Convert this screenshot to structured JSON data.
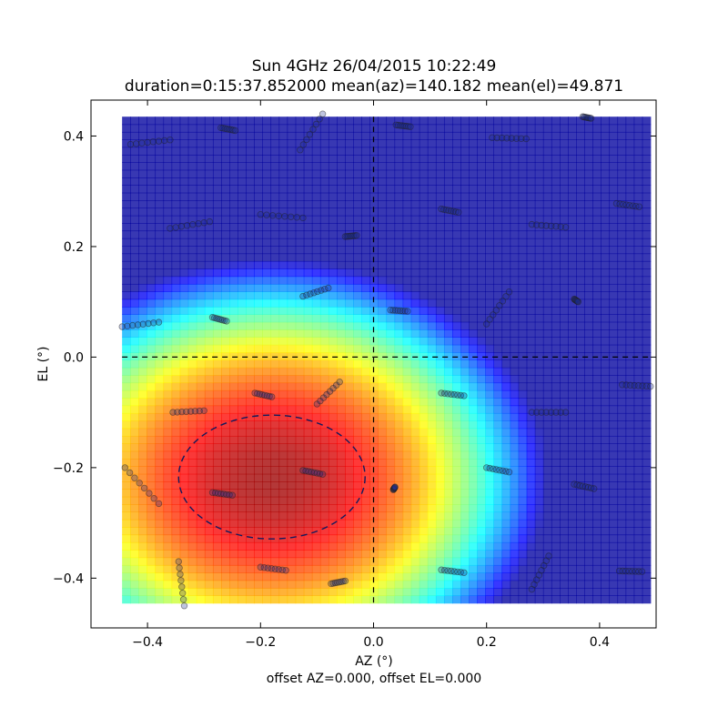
{
  "title": {
    "line1": "Sun 4GHz 26/04/2015 10:22:49",
    "line2": "duration=0:15:37.852000 mean(az)=140.182 mean(el)=49.871"
  },
  "footer": "offset AZ=0.000, offset EL=0.000",
  "chart_data": {
    "type": "heatmap",
    "xlabel": "AZ (°)",
    "ylabel": "EL (°)",
    "xlim": [
      -0.5,
      0.5
    ],
    "ylim": [
      -0.49,
      0.465
    ],
    "x_ticks": [
      -0.4,
      -0.2,
      0.0,
      0.2,
      0.4
    ],
    "y_ticks": [
      -0.4,
      -0.2,
      0.0,
      0.2,
      0.4
    ],
    "x_tick_labels": [
      "−0.4",
      "−0.2",
      "0.0",
      "0.2",
      "0.4"
    ],
    "y_tick_labels": [
      "−0.4",
      "−0.2",
      "0.0",
      "0.2",
      "0.4"
    ],
    "colormap": "jet",
    "heatmap_extent": {
      "x": [
        -0.445,
        0.49
      ],
      "y": [
        -0.445,
        0.435
      ]
    },
    "beam_peak": {
      "az": -0.18,
      "el": -0.22
    },
    "beam_ellipse": {
      "center": [
        -0.18,
        -0.217
      ],
      "semi_axis_az": 0.165,
      "semi_axis_el": 0.112
    },
    "reference_lines": {
      "az": 0.0,
      "el": 0.0
    },
    "scan_points_color": "#1a2a8c",
    "scan_segments": [
      {
        "from": [
          -0.43,
          0.385
        ],
        "to": [
          -0.36,
          0.393
        ]
      },
      {
        "from": [
          -0.27,
          0.415
        ],
        "to": [
          -0.245,
          0.41
        ]
      },
      {
        "from": [
          -0.13,
          0.375
        ],
        "to": [
          -0.09,
          0.44
        ]
      },
      {
        "from": [
          0.04,
          0.42
        ],
        "to": [
          0.065,
          0.417
        ]
      },
      {
        "from": [
          0.21,
          0.397
        ],
        "to": [
          0.27,
          0.395
        ]
      },
      {
        "from": [
          0.37,
          0.435
        ],
        "to": [
          0.385,
          0.432
        ]
      },
      {
        "from": [
          -0.36,
          0.233
        ],
        "to": [
          -0.29,
          0.245
        ]
      },
      {
        "from": [
          -0.2,
          0.258
        ],
        "to": [
          -0.125,
          0.252
        ]
      },
      {
        "from": [
          -0.05,
          0.218
        ],
        "to": [
          -0.03,
          0.22
        ]
      },
      {
        "from": [
          0.12,
          0.268
        ],
        "to": [
          0.15,
          0.262
        ]
      },
      {
        "from": [
          0.28,
          0.24
        ],
        "to": [
          0.34,
          0.235
        ]
      },
      {
        "from": [
          0.43,
          0.278
        ],
        "to": [
          0.47,
          0.272
        ]
      },
      {
        "from": [
          -0.445,
          0.055
        ],
        "to": [
          -0.38,
          0.063
        ]
      },
      {
        "from": [
          -0.285,
          0.072
        ],
        "to": [
          -0.26,
          0.065
        ]
      },
      {
        "from": [
          -0.125,
          0.11
        ],
        "to": [
          -0.08,
          0.125
        ]
      },
      {
        "from": [
          0.03,
          0.085
        ],
        "to": [
          0.06,
          0.083
        ]
      },
      {
        "from": [
          0.2,
          0.06
        ],
        "to": [
          0.24,
          0.118
        ]
      },
      {
        "from": [
          0.355,
          0.105
        ],
        "to": [
          0.362,
          0.1
        ]
      },
      {
        "from": [
          -0.355,
          -0.1
        ],
        "to": [
          -0.3,
          -0.097
        ]
      },
      {
        "from": [
          -0.21,
          -0.065
        ],
        "to": [
          -0.18,
          -0.072
        ]
      },
      {
        "from": [
          -0.1,
          -0.085
        ],
        "to": [
          -0.06,
          -0.045
        ]
      },
      {
        "from": [
          0.12,
          -0.065
        ],
        "to": [
          0.16,
          -0.07
        ]
      },
      {
        "from": [
          0.28,
          -0.1
        ],
        "to": [
          0.34,
          -0.1
        ]
      },
      {
        "from": [
          0.44,
          -0.05
        ],
        "to": [
          0.49,
          -0.053
        ]
      },
      {
        "from": [
          -0.44,
          -0.2
        ],
        "to": [
          -0.38,
          -0.265
        ]
      },
      {
        "from": [
          -0.285,
          -0.245
        ],
        "to": [
          -0.25,
          -0.25
        ]
      },
      {
        "from": [
          -0.125,
          -0.205
        ],
        "to": [
          -0.09,
          -0.212
        ]
      },
      {
        "from": [
          0.035,
          -0.24
        ],
        "to": [
          0.038,
          -0.235
        ]
      },
      {
        "from": [
          0.2,
          -0.2
        ],
        "to": [
          0.24,
          -0.208
        ]
      },
      {
        "from": [
          0.355,
          -0.23
        ],
        "to": [
          0.39,
          -0.238
        ]
      },
      {
        "from": [
          -0.345,
          -0.37
        ],
        "to": [
          -0.335,
          -0.45
        ]
      },
      {
        "from": [
          -0.2,
          -0.38
        ],
        "to": [
          -0.155,
          -0.386
        ]
      },
      {
        "from": [
          -0.075,
          -0.41
        ],
        "to": [
          -0.05,
          -0.405
        ]
      },
      {
        "from": [
          0.12,
          -0.385
        ],
        "to": [
          0.16,
          -0.39
        ]
      },
      {
        "from": [
          0.28,
          -0.42
        ],
        "to": [
          0.31,
          -0.36
        ]
      },
      {
        "from": [
          0.435,
          -0.387
        ],
        "to": [
          0.475,
          -0.388
        ]
      }
    ]
  }
}
